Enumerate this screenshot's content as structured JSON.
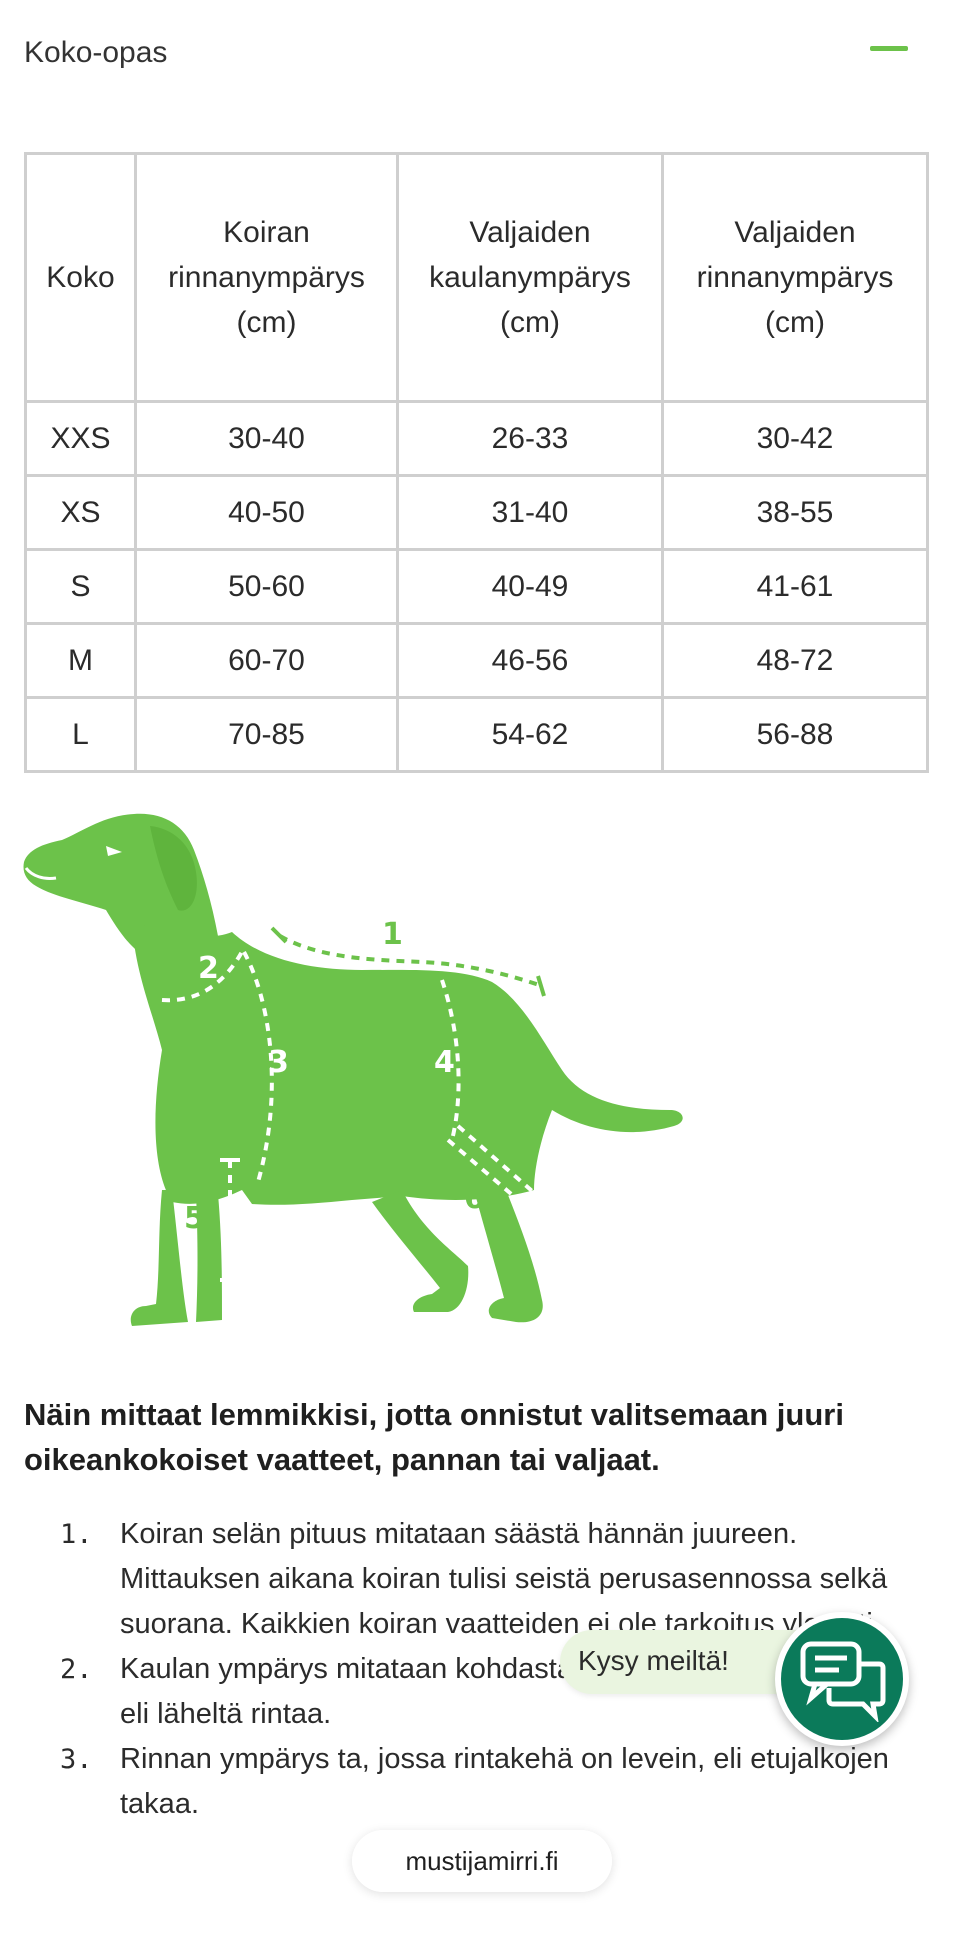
{
  "accordion": {
    "title": "Koko-opas"
  },
  "size_table": {
    "headers": [
      {
        "line1": "Koko",
        "line2": "",
        "line3": ""
      },
      {
        "line1": "Koiran",
        "line2": "rinnanympärys",
        "line3": "(cm)"
      },
      {
        "line1": "Valjaiden",
        "line2": "kaulanympärys",
        "line3": "(cm)"
      },
      {
        "line1": "Valjaiden",
        "line2": "rinnanympärys",
        "line3": "(cm)"
      }
    ],
    "rows": [
      [
        "XXS",
        "30-40",
        "26-33",
        "30-42"
      ],
      [
        "XS",
        "40-50",
        "31-40",
        "38-55"
      ],
      [
        "S",
        "50-60",
        "40-49",
        "41-61"
      ],
      [
        "M",
        "60-70",
        "46-56",
        "48-72"
      ],
      [
        "L",
        "70-85",
        "54-62",
        "56-88"
      ]
    ]
  },
  "dog_figure": {
    "labels": [
      "1",
      "2",
      "3",
      "4",
      "5",
      "6"
    ],
    "color": "#6cc24a"
  },
  "guide": {
    "heading": "Näin mittaat lemmikkisi, jotta onnistut valitsemaan juuri oikeankokoiset vaatteet, pannan tai valjaat.",
    "items": [
      {
        "number": "1.",
        "text": "Koiran selän pituus mitataan säästä hännän juureen. Mittauksen aikana koiran tulisi seistä perusasennossa selkä suorana. Kaikkien koiran vaatteiden ei ole tarkoitus yle asti."
      },
      {
        "number": "2.",
        "text": "Kaulan ympärys mitataan kohdasta, jossa kaula on paksuin, eli läheltä rintaa."
      },
      {
        "number": "3.",
        "text": "Rinnan ympärys ta, jossa rintakehä on levein, eli etujalkojen takaa."
      }
    ]
  },
  "chat": {
    "bubble_text": "Kysy meiltä!",
    "icon": "chat-icon",
    "color": "#0b7a5a"
  },
  "url_bar": {
    "text": "mustijamirri.fi"
  }
}
